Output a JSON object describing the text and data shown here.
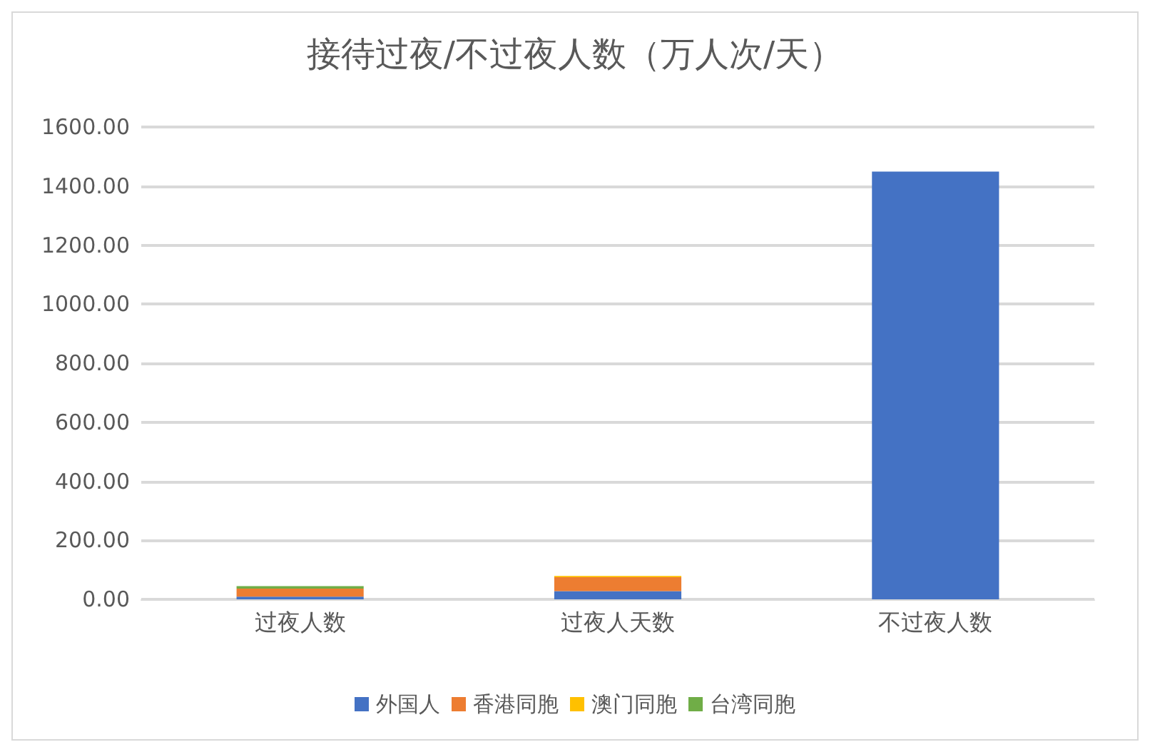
{
  "chart_data": {
    "type": "bar",
    "title": "接待过夜/不过夜人数（万人次/天）",
    "categories": [
      "过夜人数",
      "过夜人天数",
      "不过夜人数"
    ],
    "stacked": true,
    "ylim": [
      0,
      1600
    ],
    "yticks": [
      {
        "value": 0,
        "label": "0.00"
      },
      {
        "value": 200,
        "label": "200.00"
      },
      {
        "value": 400,
        "label": "400.00"
      },
      {
        "value": 600,
        "label": "600.00"
      },
      {
        "value": 800,
        "label": "800.00"
      },
      {
        "value": 1000,
        "label": "1000.00"
      },
      {
        "value": 1200,
        "label": "1200.00"
      },
      {
        "value": 1400,
        "label": "1400.00"
      },
      {
        "value": 1600,
        "label": "1600.00"
      }
    ],
    "grid": "y",
    "legend": "bottom",
    "series": [
      {
        "name": "外国人",
        "color": "#4472c4",
        "values": [
          9,
          28,
          1449
        ]
      },
      {
        "name": "香港同胞",
        "color": "#ed7d31",
        "values": [
          27,
          47,
          0
        ]
      },
      {
        "name": "澳门同胞",
        "color": "#ffc000",
        "values": [
          null,
          4,
          0
        ]
      },
      {
        "name": "台湾同胞",
        "color": "#70ad47",
        "values": [
          9,
          0,
          0
        ]
      }
    ]
  }
}
